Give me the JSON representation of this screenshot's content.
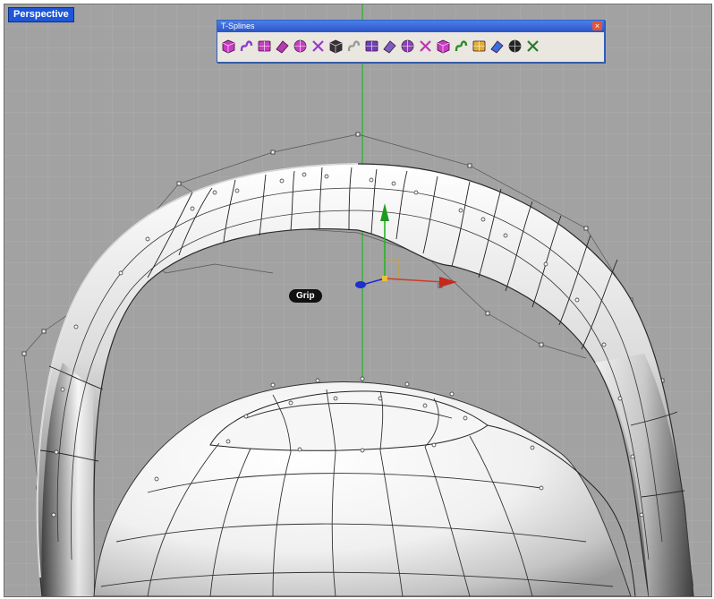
{
  "viewport": {
    "label": "Perspective"
  },
  "toolbar": {
    "title": "T-Splines",
    "close": "×",
    "tools": [
      {
        "icon": "box-primitive-icon",
        "color": "#c93bc4"
      },
      {
        "icon": "curve-spline-icon",
        "color": "#8a3bd1"
      },
      {
        "icon": "curve-loft-icon",
        "color": "#c93bc4"
      },
      {
        "icon": "plane-primitive-icon",
        "color": "#b83ab0"
      },
      {
        "icon": "extrude-face-icon",
        "color": "#c93bc4"
      },
      {
        "icon": "bridge-icon",
        "color": "#9a3ac8"
      },
      {
        "icon": "transform-manipulator-icon",
        "color": "#333333"
      },
      {
        "icon": "sphere-primitive-icon",
        "color": "#9a9a9a"
      },
      {
        "icon": "surface-display-icon",
        "color": "#6f3fb5"
      },
      {
        "icon": "insert-edge-icon",
        "color": "#7b5fc0"
      },
      {
        "icon": "append-vertex-icon",
        "color": "#8e40b8"
      },
      {
        "icon": "weld-icon",
        "color": "#b83ab0"
      },
      {
        "icon": "crease-icon",
        "color": "#c93bc4"
      },
      {
        "icon": "axis-gizmo-icon",
        "color": "#2a8a2a"
      },
      {
        "icon": "open-folder-icon",
        "color": "#e0b030"
      },
      {
        "icon": "cube-display-icon",
        "color": "#3b6fd8"
      },
      {
        "icon": "smooth-mode-icon",
        "color": "#222222"
      },
      {
        "icon": "symmetry-icon",
        "color": "#2a7a2a"
      }
    ]
  },
  "gizmo_tag": {
    "label": "Grip"
  },
  "colors": {
    "background": "#a2a2a2",
    "grid": "#b6b6b6",
    "green_axis": "#26b526",
    "red_axis": "#d23a2a",
    "blue_axis": "#1e2fd0"
  }
}
